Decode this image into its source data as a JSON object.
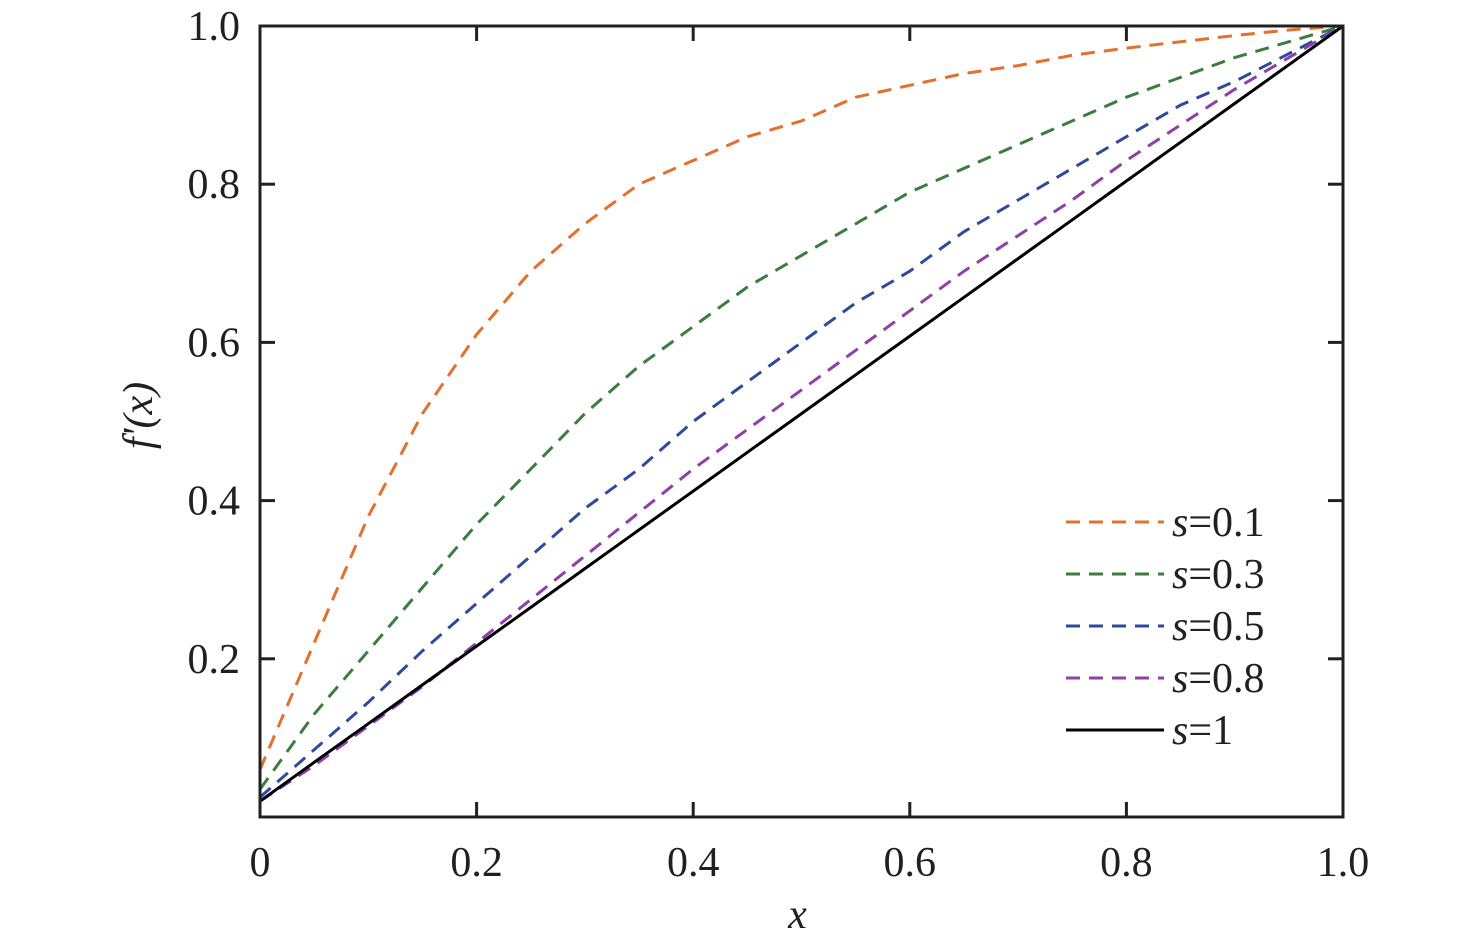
{
  "chart_data": {
    "type": "line",
    "title": "",
    "xlabel": "x",
    "ylabel": "f'(x)",
    "xlim": [
      0,
      1.0
    ],
    "ylim": [
      0,
      1.0
    ],
    "x_ticks": [
      0,
      0.2,
      0.4,
      0.6,
      0.8,
      1.0
    ],
    "x_tick_labels": [
      "0",
      "0.2",
      "0.4",
      "0.6",
      "0.8",
      "1.0"
    ],
    "y_ticks": [
      0.2,
      0.4,
      0.6,
      0.8,
      1.0
    ],
    "y_tick_labels": [
      "0.2",
      "0.4",
      "0.6",
      "0.8",
      "1.0"
    ],
    "grid": false,
    "legend_position": "bottom-right",
    "x": [
      0,
      0.05,
      0.1,
      0.15,
      0.2,
      0.25,
      0.3,
      0.35,
      0.4,
      0.45,
      0.5,
      0.55,
      0.6,
      0.65,
      0.7,
      0.75,
      0.8,
      0.85,
      0.9,
      0.95,
      1.0
    ],
    "series": [
      {
        "name": "s=0.1",
        "label_italic": "s",
        "label_rest": "=0.1",
        "color": "#e2702e",
        "dashed": true,
        "values": [
          0.06,
          0.22,
          0.38,
          0.51,
          0.61,
          0.69,
          0.75,
          0.8,
          0.83,
          0.86,
          0.88,
          0.91,
          0.925,
          0.94,
          0.95,
          0.963,
          0.972,
          0.98,
          0.988,
          0.995,
          1.0
        ]
      },
      {
        "name": "s=0.3",
        "label_italic": "s",
        "label_rest": "=0.3",
        "color": "#3a7d3e",
        "dashed": true,
        "values": [
          0.035,
          0.13,
          0.21,
          0.29,
          0.37,
          0.44,
          0.51,
          0.57,
          0.62,
          0.67,
          0.71,
          0.75,
          0.79,
          0.82,
          0.85,
          0.88,
          0.91,
          0.935,
          0.96,
          0.98,
          1.0
        ]
      },
      {
        "name": "s=0.5",
        "label_italic": "s",
        "label_rest": "=0.5",
        "color": "#2e4a9c",
        "dashed": true,
        "values": [
          0.025,
          0.085,
          0.145,
          0.21,
          0.27,
          0.33,
          0.39,
          0.44,
          0.5,
          0.55,
          0.6,
          0.65,
          0.69,
          0.74,
          0.78,
          0.82,
          0.86,
          0.9,
          0.93,
          0.965,
          1.0
        ]
      },
      {
        "name": "s=0.8",
        "label_italic": "s",
        "label_rest": "=0.8",
        "color": "#8e3fa8",
        "dashed": true,
        "values": [
          0.02,
          0.065,
          0.115,
          0.165,
          0.22,
          0.275,
          0.33,
          0.385,
          0.44,
          0.49,
          0.54,
          0.59,
          0.64,
          0.69,
          0.735,
          0.78,
          0.83,
          0.875,
          0.92,
          0.96,
          1.0
        ]
      },
      {
        "name": "s=1",
        "label_italic": "s",
        "label_rest": "=1",
        "color": "#000000",
        "dashed": false,
        "values": [
          0.02,
          0.069,
          0.118,
          0.167,
          0.216,
          0.265,
          0.314,
          0.363,
          0.412,
          0.461,
          0.51,
          0.559,
          0.608,
          0.657,
          0.706,
          0.755,
          0.804,
          0.853,
          0.902,
          0.951,
          1.0
        ]
      }
    ]
  }
}
